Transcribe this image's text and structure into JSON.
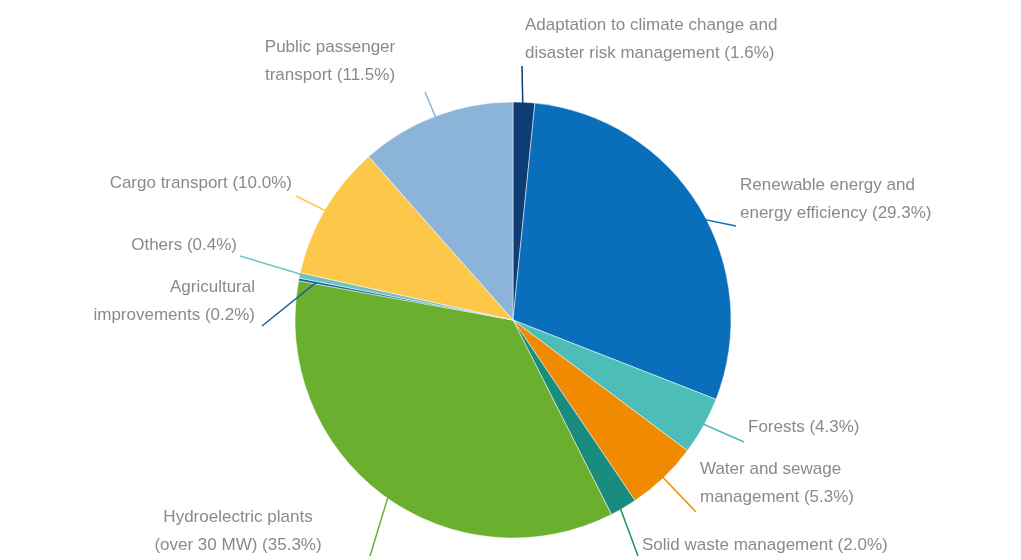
{
  "chart_data": {
    "type": "pie",
    "categories": [
      "Adaptation to climate change and disaster risk management",
      "Renewable energy and energy efficiency",
      "Forests",
      "Water and sewage management",
      "Solid waste management",
      "Hydroelectric plants (over 30 MW)",
      "Agricultural improvements",
      "Others",
      "Cargo transport",
      "Public passenger transport"
    ],
    "values": [
      1.6,
      29.3,
      4.3,
      5.3,
      2.0,
      35.3,
      0.2,
      0.4,
      10.0,
      11.5
    ],
    "colors": [
      "#0d3d73",
      "#0a6fba",
      "#4dbdb8",
      "#f08a00",
      "#1a8c7e",
      "#6aaf2e",
      "#1b5e9e",
      "#6cc3c0",
      "#fdc84a",
      "#8cb4d8"
    ],
    "value_labels": [
      "(1.6%)",
      "(29.3%)",
      "(4.3%)",
      "(5.3%)",
      "(2.0%)",
      "(35.3%)",
      "(0.2%)",
      "(0.4%)",
      "(10.0%)",
      "(11.5%)"
    ]
  }
}
